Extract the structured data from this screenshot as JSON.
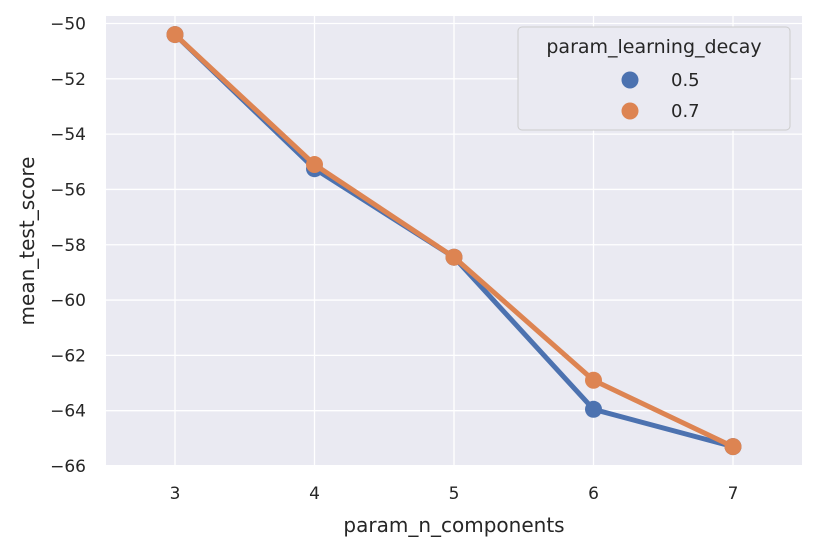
{
  "chart_data": {
    "type": "line",
    "xlabel": "param_n_components",
    "ylabel": "mean_test_score",
    "categories": [
      "3",
      "4",
      "5",
      "6",
      "7"
    ],
    "ylim": [
      -66,
      -50
    ],
    "yticks": [
      -50,
      -52,
      -54,
      -56,
      -58,
      -60,
      -62,
      -64,
      -66
    ],
    "ytick_labels": [
      "−50",
      "−52",
      "−54",
      "−56",
      "−58",
      "−60",
      "−62",
      "−64",
      "−66"
    ],
    "grid": true,
    "legend": {
      "title": "param_learning_decay",
      "placement": "top-right"
    },
    "series": [
      {
        "name": "0.5",
        "color": "#4c72b0",
        "values": [
          -50.4,
          -55.25,
          -58.45,
          -63.95,
          -65.3
        ]
      },
      {
        "name": "0.7",
        "color": "#dd8452",
        "values": [
          -50.4,
          -55.1,
          -58.45,
          -62.9,
          -65.3
        ]
      }
    ]
  }
}
